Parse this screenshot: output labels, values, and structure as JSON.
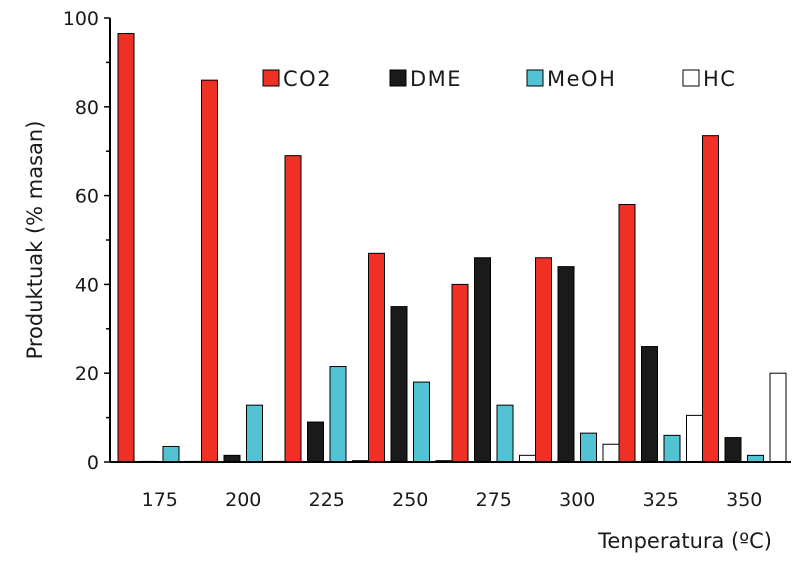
{
  "chart_data": {
    "type": "bar",
    "title": "",
    "xlabel": "Tenperatura (ºC)",
    "ylabel": "Produktuak (% masan)",
    "ylim": [
      0,
      100
    ],
    "yticks": [
      0,
      20,
      40,
      60,
      80,
      100
    ],
    "categories": [
      "175",
      "200",
      "225",
      "250",
      "275",
      "300",
      "325",
      "350"
    ],
    "series": [
      {
        "name": "CO2",
        "color": "#ee3124",
        "values": [
          96.5,
          86.0,
          69.0,
          47.0,
          40.0,
          46.0,
          58.0,
          73.5
        ]
      },
      {
        "name": "DME",
        "color": "#1a1a1a",
        "values": [
          0.0,
          1.5,
          9.0,
          35.0,
          46.0,
          44.0,
          26.0,
          5.5
        ]
      },
      {
        "name": "MeOH",
        "color": "#52c3d3",
        "values": [
          3.5,
          12.8,
          21.5,
          18.0,
          12.8,
          6.5,
          6.0,
          1.5
        ]
      },
      {
        "name": "HC",
        "color": "#ffffff",
        "values": [
          0.0,
          0.0,
          0.3,
          0.3,
          1.5,
          4.0,
          10.5,
          20.0
        ]
      }
    ],
    "legend_position": "top",
    "grid": false
  }
}
